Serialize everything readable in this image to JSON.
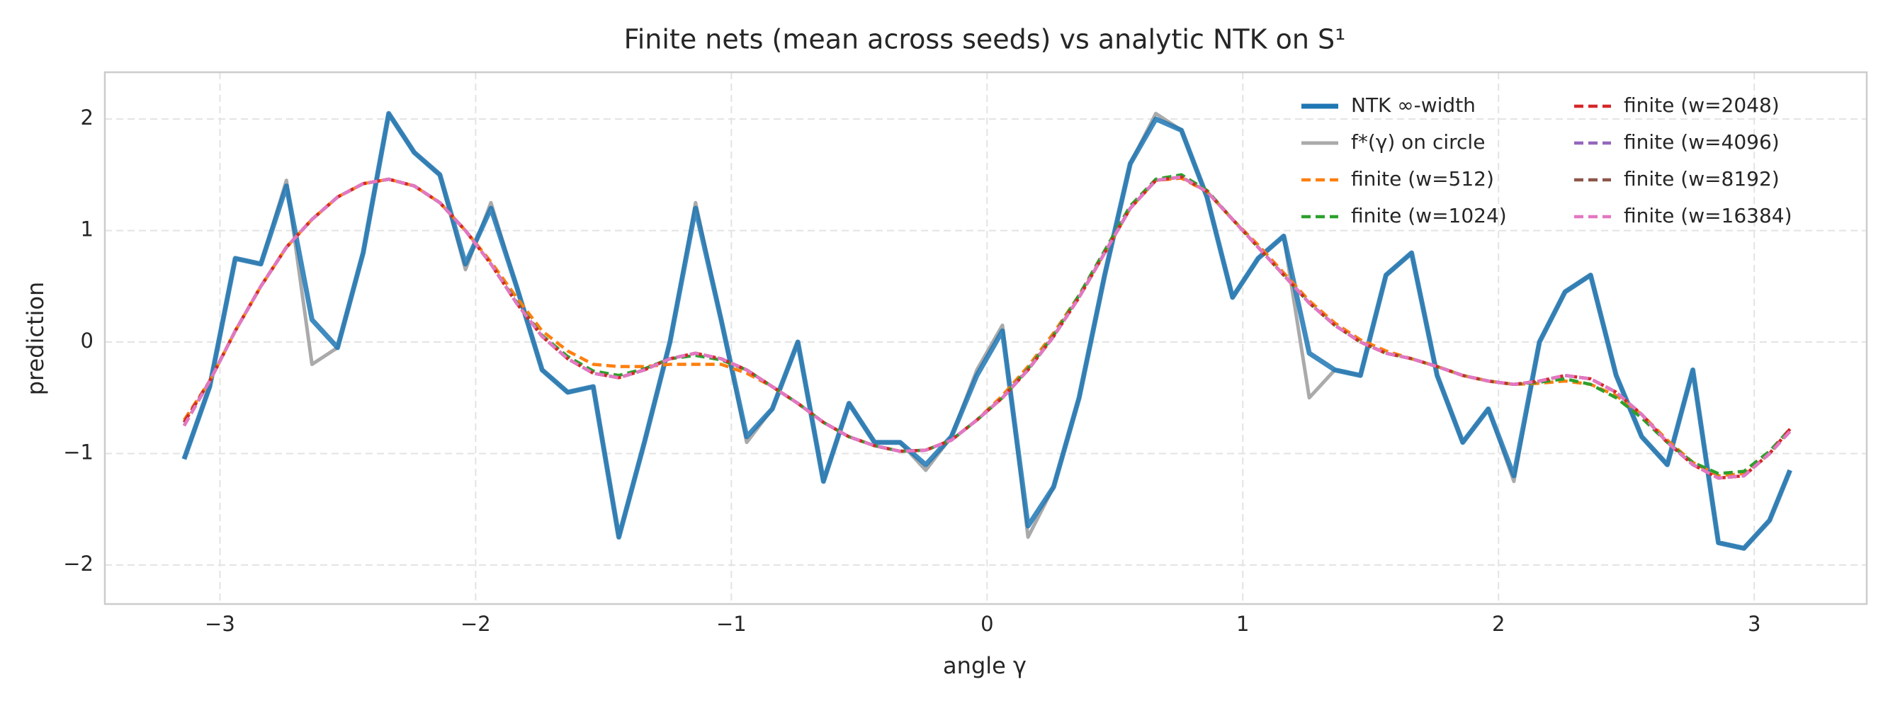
{
  "chart_data": {
    "type": "line",
    "title": "Finite nets (mean across seeds) vs analytic NTK on S¹",
    "xlabel": "angle γ",
    "ylabel": "prediction",
    "x": [
      -3.14,
      -3.04,
      -2.94,
      -2.84,
      -2.74,
      -2.64,
      -2.54,
      -2.44,
      -2.34,
      -2.24,
      -2.14,
      -2.04,
      -1.94,
      -1.84,
      -1.74,
      -1.64,
      -1.54,
      -1.44,
      -1.34,
      -1.24,
      -1.14,
      -1.04,
      -0.94,
      -0.84,
      -0.74,
      -0.64,
      -0.54,
      -0.44,
      -0.34,
      -0.24,
      -0.14,
      -0.04,
      0.06,
      0.16,
      0.26,
      0.36,
      0.46,
      0.56,
      0.66,
      0.76,
      0.86,
      0.96,
      1.06,
      1.16,
      1.26,
      1.36,
      1.46,
      1.56,
      1.66,
      1.76,
      1.86,
      1.96,
      2.06,
      2.16,
      2.26,
      2.36,
      2.46,
      2.56,
      2.66,
      2.76,
      2.86,
      2.96,
      3.06,
      3.14
    ],
    "series": [
      {
        "name": "NTK ∞-width",
        "color": "#1f77b4",
        "linestyle": "solid",
        "values": [
          -1.05,
          -0.4,
          0.75,
          0.7,
          1.4,
          0.2,
          -0.05,
          0.8,
          2.05,
          1.7,
          1.5,
          0.7,
          1.2,
          0.5,
          -0.25,
          -0.45,
          -0.4,
          -1.75,
          -0.9,
          0.0,
          1.2,
          0.2,
          -0.85,
          -0.6,
          0.0,
          -1.25,
          -0.55,
          -0.9,
          -0.9,
          -1.1,
          -0.85,
          -0.3,
          0.1,
          -1.65,
          -1.3,
          -0.5,
          0.6,
          1.6,
          2.0,
          1.9,
          1.3,
          0.4,
          0.75,
          0.95,
          -0.1,
          -0.25,
          -0.3,
          0.6,
          0.8,
          -0.3,
          -0.9,
          -0.6,
          -1.2,
          0.0,
          0.45,
          0.6,
          -0.3,
          -0.85,
          -1.1,
          -0.25,
          -1.8,
          -1.85,
          -1.6,
          -1.15
        ]
      },
      {
        "name": "f*(γ) on circle",
        "color": "#aaaaaa",
        "linestyle": "solid",
        "values": [
          -1.05,
          -0.4,
          0.75,
          0.7,
          1.45,
          -0.2,
          -0.05,
          0.8,
          2.05,
          1.7,
          1.5,
          0.65,
          1.25,
          0.5,
          -0.25,
          -0.45,
          -0.4,
          -1.75,
          -0.9,
          0.0,
          1.25,
          0.2,
          -0.9,
          -0.6,
          0.0,
          -1.25,
          -0.55,
          -0.9,
          -0.9,
          -1.15,
          -0.85,
          -0.25,
          0.15,
          -1.75,
          -1.3,
          -0.5,
          0.6,
          1.6,
          2.05,
          1.9,
          1.3,
          0.4,
          0.75,
          0.95,
          -0.5,
          -0.25,
          -0.3,
          0.6,
          0.8,
          -0.3,
          -0.9,
          -0.6,
          -1.25,
          0.0,
          0.45,
          0.6,
          -0.3,
          -0.85,
          -1.1,
          -0.25,
          -1.8,
          -1.85,
          -1.6,
          -1.15
        ]
      },
      {
        "name": "finite (w=512)",
        "color": "#ff7f0e",
        "linestyle": "dashed",
        "values": [
          -0.7,
          -0.35,
          0.1,
          0.5,
          0.85,
          1.1,
          1.3,
          1.42,
          1.46,
          1.4,
          1.25,
          1.0,
          0.72,
          0.4,
          0.1,
          -0.08,
          -0.2,
          -0.22,
          -0.22,
          -0.2,
          -0.2,
          -0.2,
          -0.28,
          -0.4,
          -0.55,
          -0.72,
          -0.85,
          -0.93,
          -0.98,
          -0.97,
          -0.88,
          -0.7,
          -0.48,
          -0.22,
          0.08,
          0.42,
          0.8,
          1.2,
          1.45,
          1.47,
          1.35,
          1.1,
          0.87,
          0.62,
          0.37,
          0.17,
          0.02,
          -0.08,
          -0.15,
          -0.22,
          -0.3,
          -0.35,
          -0.38,
          -0.37,
          -0.35,
          -0.38,
          -0.48,
          -0.65,
          -0.88,
          -1.08,
          -1.2,
          -1.18,
          -1.0,
          -0.78
        ]
      },
      {
        "name": "finite (w=1024)",
        "color": "#2ca02c",
        "linestyle": "dashed",
        "values": [
          -0.72,
          -0.35,
          0.1,
          0.5,
          0.85,
          1.1,
          1.3,
          1.42,
          1.46,
          1.4,
          1.25,
          1.0,
          0.7,
          0.36,
          0.06,
          -0.13,
          -0.26,
          -0.3,
          -0.24,
          -0.15,
          -0.12,
          -0.16,
          -0.25,
          -0.4,
          -0.55,
          -0.72,
          -0.85,
          -0.93,
          -0.98,
          -0.97,
          -0.88,
          -0.7,
          -0.5,
          -0.24,
          0.06,
          0.42,
          0.82,
          1.22,
          1.46,
          1.5,
          1.36,
          1.1,
          0.85,
          0.6,
          0.35,
          0.15,
          0.0,
          -0.1,
          -0.15,
          -0.22,
          -0.3,
          -0.35,
          -0.38,
          -0.36,
          -0.33,
          -0.38,
          -0.5,
          -0.68,
          -0.9,
          -1.08,
          -1.18,
          -1.16,
          -0.98,
          -0.78
        ]
      },
      {
        "name": "finite (w=2048)",
        "color": "#d62728",
        "linestyle": "dashed",
        "values": [
          -0.72,
          -0.35,
          0.1,
          0.5,
          0.85,
          1.1,
          1.3,
          1.42,
          1.46,
          1.4,
          1.25,
          1.0,
          0.7,
          0.35,
          0.05,
          -0.15,
          -0.28,
          -0.32,
          -0.25,
          -0.15,
          -0.1,
          -0.15,
          -0.25,
          -0.4,
          -0.55,
          -0.72,
          -0.85,
          -0.93,
          -0.98,
          -0.97,
          -0.88,
          -0.7,
          -0.5,
          -0.25,
          0.05,
          0.4,
          0.8,
          1.2,
          1.45,
          1.48,
          1.35,
          1.1,
          0.85,
          0.6,
          0.35,
          0.15,
          0.0,
          -0.1,
          -0.15,
          -0.22,
          -0.3,
          -0.35,
          -0.38,
          -0.35,
          -0.3,
          -0.33,
          -0.45,
          -0.65,
          -0.9,
          -1.1,
          -1.22,
          -1.2,
          -1.0,
          -0.78
        ]
      },
      {
        "name": "finite (w=4096)",
        "color": "#9467bd",
        "linestyle": "dashed",
        "values": [
          -0.75,
          -0.35,
          0.1,
          0.5,
          0.85,
          1.1,
          1.3,
          1.42,
          1.46,
          1.4,
          1.25,
          1.0,
          0.7,
          0.35,
          0.05,
          -0.15,
          -0.28,
          -0.32,
          -0.25,
          -0.15,
          -0.1,
          -0.15,
          -0.25,
          -0.4,
          -0.55,
          -0.72,
          -0.85,
          -0.93,
          -0.98,
          -0.97,
          -0.88,
          -0.7,
          -0.5,
          -0.25,
          0.05,
          0.4,
          0.8,
          1.2,
          1.45,
          1.48,
          1.35,
          1.1,
          0.85,
          0.6,
          0.35,
          0.15,
          0.0,
          -0.1,
          -0.15,
          -0.22,
          -0.3,
          -0.35,
          -0.38,
          -0.35,
          -0.3,
          -0.33,
          -0.45,
          -0.65,
          -0.9,
          -1.1,
          -1.22,
          -1.2,
          -1.0,
          -0.8
        ]
      },
      {
        "name": "finite (w=8192)",
        "color": "#8c564b",
        "linestyle": "dashed",
        "values": [
          -0.75,
          -0.35,
          0.1,
          0.5,
          0.85,
          1.1,
          1.3,
          1.42,
          1.46,
          1.4,
          1.25,
          1.0,
          0.7,
          0.35,
          0.05,
          -0.15,
          -0.28,
          -0.32,
          -0.25,
          -0.15,
          -0.1,
          -0.15,
          -0.25,
          -0.4,
          -0.55,
          -0.72,
          -0.85,
          -0.93,
          -0.98,
          -0.97,
          -0.88,
          -0.7,
          -0.5,
          -0.25,
          0.05,
          0.4,
          0.8,
          1.2,
          1.45,
          1.48,
          1.35,
          1.1,
          0.85,
          0.6,
          0.35,
          0.15,
          0.0,
          -0.1,
          -0.15,
          -0.22,
          -0.3,
          -0.35,
          -0.38,
          -0.35,
          -0.3,
          -0.33,
          -0.45,
          -0.65,
          -0.9,
          -1.1,
          -1.22,
          -1.2,
          -1.0,
          -0.8
        ]
      },
      {
        "name": "finite (w=16384)",
        "color": "#e377c2",
        "linestyle": "dashed",
        "values": [
          -0.75,
          -0.35,
          0.1,
          0.5,
          0.85,
          1.1,
          1.3,
          1.42,
          1.46,
          1.4,
          1.25,
          1.0,
          0.7,
          0.35,
          0.05,
          -0.15,
          -0.28,
          -0.32,
          -0.25,
          -0.15,
          -0.1,
          -0.15,
          -0.25,
          -0.4,
          -0.55,
          -0.72,
          -0.85,
          -0.93,
          -0.98,
          -0.97,
          -0.88,
          -0.7,
          -0.5,
          -0.25,
          0.05,
          0.4,
          0.8,
          1.2,
          1.45,
          1.48,
          1.35,
          1.1,
          0.85,
          0.6,
          0.35,
          0.15,
          0.0,
          -0.1,
          -0.15,
          -0.22,
          -0.3,
          -0.35,
          -0.38,
          -0.35,
          -0.3,
          -0.33,
          -0.45,
          -0.65,
          -0.9,
          -1.1,
          -1.22,
          -1.2,
          -1.0,
          -0.8
        ]
      }
    ],
    "xlim": [
      -3.45,
      3.44
    ],
    "ylim": [
      -2.35,
      2.42
    ],
    "xticks": [
      {
        "value": -3,
        "label": "−3"
      },
      {
        "value": -2,
        "label": "−2"
      },
      {
        "value": -1,
        "label": "−1"
      },
      0,
      1,
      2,
      3
    ],
    "yticks": [
      {
        "value": -2,
        "label": "−2"
      },
      {
        "value": -1,
        "label": "−1"
      },
      0,
      1,
      2
    ],
    "grid": true,
    "legend": {
      "loc": "upper right",
      "ncol": 2
    }
  }
}
